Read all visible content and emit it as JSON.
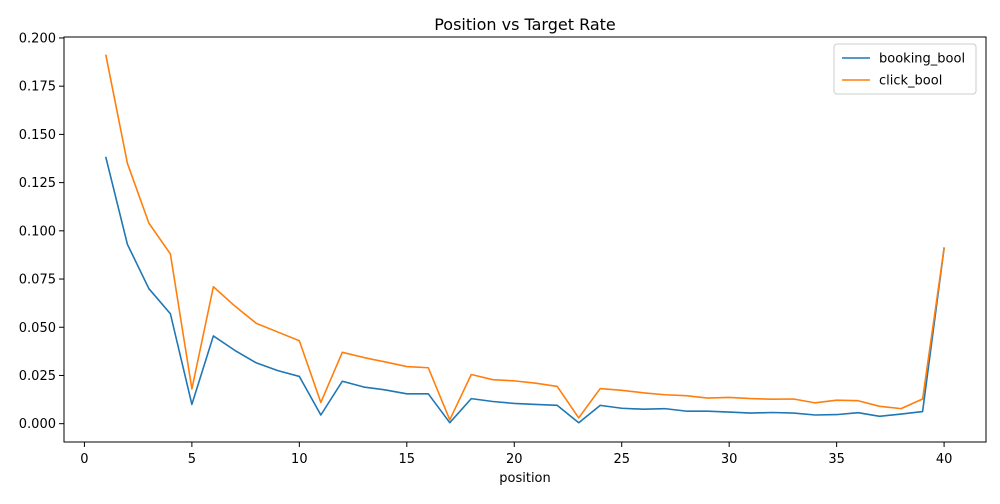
{
  "chart_data": {
    "type": "line",
    "title": "Position vs Target Rate",
    "xlabel": "position",
    "ylabel": "",
    "xlim": [
      -0.95,
      41.95
    ],
    "ylim": [
      -0.0095,
      0.2005
    ],
    "xticks": [
      0,
      5,
      10,
      15,
      20,
      25,
      30,
      35,
      40
    ],
    "yticks": [
      0.0,
      0.025,
      0.05,
      0.075,
      0.1,
      0.125,
      0.15,
      0.175,
      0.2
    ],
    "xtick_labels": [
      "0",
      "5",
      "10",
      "15",
      "20",
      "25",
      "30",
      "35",
      "40"
    ],
    "ytick_labels": [
      "0.000",
      "0.025",
      "0.050",
      "0.075",
      "0.100",
      "0.125",
      "0.150",
      "0.175",
      "0.200"
    ],
    "grid": false,
    "legend": "top-right",
    "x": [
      1,
      2,
      3,
      4,
      5,
      6,
      7,
      8,
      9,
      10,
      11,
      12,
      13,
      14,
      15,
      16,
      17,
      18,
      19,
      20,
      21,
      22,
      23,
      24,
      25,
      26,
      27,
      28,
      29,
      30,
      31,
      32,
      33,
      34,
      35,
      36,
      37,
      38,
      39,
      40
    ],
    "series": [
      {
        "name": "booking_bool",
        "color": "#1f77b4",
        "values": [
          0.138,
          0.093,
          0.07,
          0.057,
          0.01,
          0.0455,
          0.038,
          0.0315,
          0.0275,
          0.0245,
          0.0045,
          0.022,
          0.019,
          0.0175,
          0.0155,
          0.0155,
          0.0005,
          0.013,
          0.0115,
          0.0105,
          0.01,
          0.0095,
          0.0005,
          0.0095,
          0.008,
          0.0075,
          0.0078,
          0.0065,
          0.0065,
          0.006,
          0.0055,
          0.0058,
          0.0055,
          0.0045,
          0.0047,
          0.0057,
          0.0038,
          0.005,
          0.0063,
          0.091
        ]
      },
      {
        "name": "click_bool",
        "color": "#ff7f0e",
        "values": [
          0.191,
          0.135,
          0.104,
          0.088,
          0.018,
          0.071,
          0.061,
          0.052,
          0.0475,
          0.043,
          0.011,
          0.037,
          0.0343,
          0.032,
          0.0296,
          0.029,
          0.002,
          0.0255,
          0.0228,
          0.0222,
          0.021,
          0.0193,
          0.003,
          0.0182,
          0.0173,
          0.016,
          0.015,
          0.0145,
          0.0133,
          0.0136,
          0.013,
          0.0127,
          0.0128,
          0.0108,
          0.0122,
          0.0119,
          0.009,
          0.0078,
          0.0128,
          0.091
        ]
      }
    ]
  }
}
